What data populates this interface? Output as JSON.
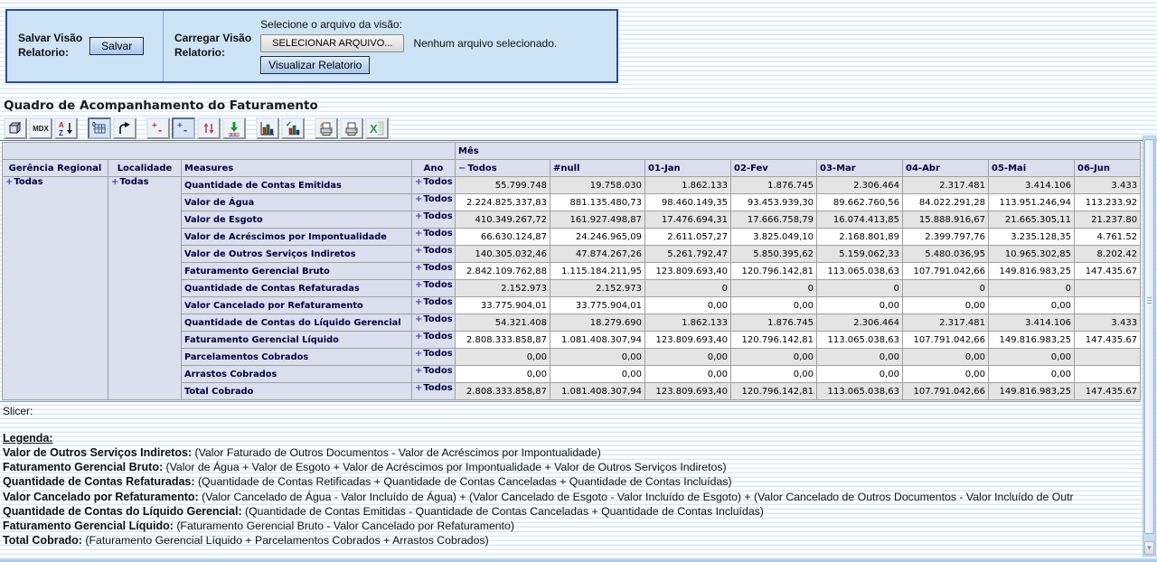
{
  "save_form": {
    "save_label": "Salvar Visão\nRelatorio:",
    "save_button": "Salvar",
    "load_label": "Carregar Visão\nRelatorio:",
    "file_prompt": "Selecione o arquivo da visão:",
    "file_button": "SELECIONAR ARQUIVO...",
    "file_status": "Nenhum arquivo selecionado.",
    "view_button": "Visualizar Relatorio"
  },
  "page_title": "Quadro de Acompanhamento do Faturamento",
  "toolbar": [
    {
      "icon": "cube-navigator"
    },
    {
      "icon": "mdx-editor",
      "label": "MDX"
    },
    {
      "icon": "sort-az"
    },
    {
      "icon": "show-spans",
      "pressed": true
    },
    {
      "icon": "swap-axes"
    },
    {
      "icon": "drill-member"
    },
    {
      "icon": "drill-position",
      "pressed": true
    },
    {
      "icon": "drill-replace"
    },
    {
      "icon": "drill-through"
    },
    {
      "icon": "chart"
    },
    {
      "icon": "chart-config"
    },
    {
      "icon": "print-config"
    },
    {
      "icon": "print"
    },
    {
      "icon": "excel-export",
      "disabled": true
    }
  ],
  "icons": {
    "collapse": "−",
    "drill": "+",
    "mdx": "MDX",
    "scroll_down": "▼"
  },
  "pivot": {
    "mes_header": "Mês",
    "row_dims": [
      {
        "header": "Gerência Regional",
        "member": "Todas"
      },
      {
        "header": "Localidade",
        "member": "Todas"
      }
    ],
    "measures_header": "Measures",
    "ano_header": "Ano",
    "ano_member": "Todos",
    "columns": [
      "Todos",
      "#null",
      "01-Jan",
      "02-Fev",
      "03-Mar",
      "04-Abr",
      "05-Mai",
      "06-Jun"
    ],
    "rows": [
      {
        "label": "Quantidade de Contas Emitidas",
        "values": [
          "55.799.748",
          "19.758.030",
          "1.862.133",
          "1.876.745",
          "2.306.464",
          "2.317.481",
          "3.414.106",
          "3.433"
        ]
      },
      {
        "label": "Valor de Água",
        "values": [
          "2.224.825.337,83",
          "881.135.480,73",
          "98.460.149,35",
          "93.453.939,30",
          "89.662.760,56",
          "84.022.291,28",
          "113.951.246,94",
          "113.233.92"
        ]
      },
      {
        "label": "Valor de Esgoto",
        "values": [
          "410.349.267,72",
          "161.927.498,87",
          "17.476.694,31",
          "17.666.758,79",
          "16.074.413,85",
          "15.888.916,67",
          "21.665.305,11",
          "21.237.80"
        ]
      },
      {
        "label": "Valor de Acréscimos por Impontualidade",
        "values": [
          "66.630.124,87",
          "24.246.965,09",
          "2.611.057,27",
          "3.825.049,10",
          "2.168.801,89",
          "2.399.797,76",
          "3.235.128,35",
          "4.761.52"
        ]
      },
      {
        "label": "Valor de Outros Serviços Indiretos",
        "values": [
          "140.305.032,46",
          "47.874.267,26",
          "5.261.792,47",
          "5.850.395,62",
          "5.159.062,33",
          "5.480.036,95",
          "10.965.302,85",
          "8.202.42"
        ]
      },
      {
        "label": "Faturamento Gerencial Bruto",
        "values": [
          "2.842.109.762,88",
          "1.115.184.211,95",
          "123.809.693,40",
          "120.796.142,81",
          "113.065.038,63",
          "107.791.042,66",
          "149.816.983,25",
          "147.435.67"
        ]
      },
      {
        "label": "Quantidade de Contas Refaturadas",
        "values": [
          "2.152.973",
          "2.152.973",
          "0",
          "0",
          "0",
          "0",
          "0",
          ""
        ]
      },
      {
        "label": "Valor Cancelado por Refaturamento",
        "values": [
          "33.775.904,01",
          "33.775.904,01",
          "0,00",
          "0,00",
          "0,00",
          "0,00",
          "0,00",
          ""
        ]
      },
      {
        "label": "Quantidade de Contas do Líquido Gerencial",
        "values": [
          "54.321.408",
          "18.279.690",
          "1.862.133",
          "1.876.745",
          "2.306.464",
          "2.317.481",
          "3.414.106",
          "3.433"
        ]
      },
      {
        "label": "Faturamento Gerencial Líquido",
        "values": [
          "2.808.333.858,87",
          "1.081.408.307,94",
          "123.809.693,40",
          "120.796.142,81",
          "113.065.038,63",
          "107.791.042,66",
          "149.816.983,25",
          "147.435.67"
        ]
      },
      {
        "label": "Parcelamentos Cobrados",
        "values": [
          "0,00",
          "0,00",
          "0,00",
          "0,00",
          "0,00",
          "0,00",
          "0,00",
          ""
        ]
      },
      {
        "label": "Arrastos Cobrados",
        "values": [
          "0,00",
          "0,00",
          "0,00",
          "0,00",
          "0,00",
          "0,00",
          "0,00",
          ""
        ]
      },
      {
        "label": "Total Cobrado",
        "values": [
          "2.808.333.858,87",
          "1.081.408.307,94",
          "123.809.693,40",
          "120.796.142,81",
          "113.065.038,63",
          "107.791.042,66",
          "149.816.983,25",
          "147.435.67"
        ]
      }
    ]
  },
  "slicer_label": "Slicer:",
  "legend": {
    "title": "Legenda:",
    "items": [
      {
        "term": "Valor de Outros Serviços Indiretos:",
        "formula": "(Valor Faturado de Outros Documentos - Valor de Acréscimos por Impontualidade)"
      },
      {
        "term": "Faturamento Gerencial Bruto:",
        "formula": "(Valor de Água + Valor de Esgoto + Valor de Acréscimos por Impontualidade + Valor de Outros Serviços Indiretos)"
      },
      {
        "term": "Quantidade de Contas Refaturadas:",
        "formula": "(Quantidade de Contas Retificadas + Quantidade de Contas Canceladas + Quantidade de Contas Incluídas)"
      },
      {
        "term": "Valor Cancelado por Refaturamento:",
        "formula": "(Valor Cancelado de Água - Valor Incluído de Água) + (Valor Cancelado de Esgoto - Valor Incluído de Esgoto) + (Valor Cancelado de Outros Documentos - Valor Incluído de Outr"
      },
      {
        "term": "Quantidade de Contas do Líquido Gerencial:",
        "formula": "(Quantidade de Contas Emitidas - Quantidade de Contas Canceladas + Quantidade de Contas Incluídas)"
      },
      {
        "term": "Faturamento Gerencial Líquido:",
        "formula": "(Faturamento Gerencial Bruto - Valor Cancelado por Refaturamento)"
      },
      {
        "term": "Total Cobrado:",
        "formula": "(Faturamento Gerencial Líquido + Parcelamentos Cobrados + Arrastos Cobrados)"
      }
    ]
  },
  "colors": {
    "form_bg": "#cde3f6",
    "form_border": "#2d4b93",
    "header_cell": "#dbe0ef",
    "header_text": "#000042",
    "row_alt": "#e4e4e4",
    "grid_line": "#a0a0a0",
    "stripe": "#d8e9f6",
    "button_blue": "#bcd6f0",
    "footer": "#9dc0dd",
    "scroll_track": "#c9dcee"
  }
}
